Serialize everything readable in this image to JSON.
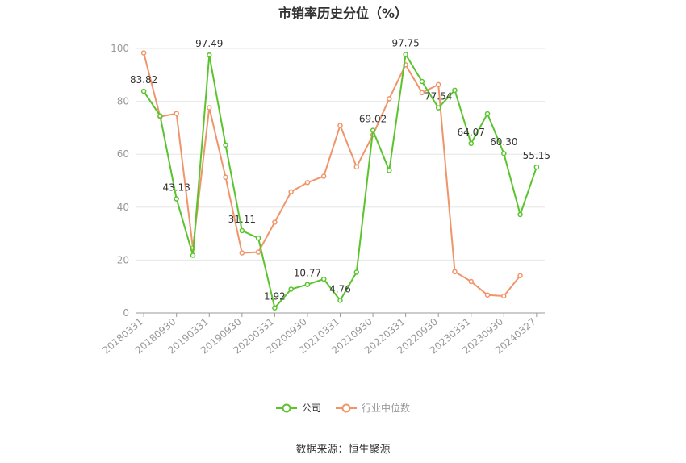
{
  "chart_data": {
    "type": "line",
    "title": "市销率历史分位（%）",
    "xlabel": "",
    "ylabel": "",
    "ylim": [
      0,
      100
    ],
    "yticks": [
      0,
      20,
      40,
      60,
      80,
      100
    ],
    "grid": true,
    "legend_position": "bottom",
    "x": [
      "20180331",
      "20180630",
      "20180930",
      "20181231",
      "20190331",
      "20190630",
      "20190930",
      "20191231",
      "20200331",
      "20200630",
      "20200930",
      "20201231",
      "20210331",
      "20210630",
      "20210930",
      "20211231",
      "20220331",
      "20220630",
      "20220930",
      "20221231",
      "20230331",
      "20230630",
      "20230930",
      "20231231",
      "20240327"
    ],
    "x_tick_labels": [
      "20180331",
      "20180930",
      "20190331",
      "20190930",
      "20200331",
      "20200930",
      "20210331",
      "20210930",
      "20220331",
      "20220930",
      "20230331",
      "20230930",
      "20240327"
    ],
    "series": [
      {
        "name": "公司",
        "color": "#5ac42d",
        "values": [
          83.82,
          74.5,
          43.13,
          21.8,
          97.49,
          63.5,
          31.11,
          28.3,
          1.92,
          9.0,
          10.77,
          12.8,
          4.76,
          15.4,
          69.02,
          53.8,
          97.75,
          87.5,
          77.54,
          84.2,
          64.07,
          75.3,
          60.3,
          37.2,
          55.15
        ]
      },
      {
        "name": "行业中位数",
        "color": "#f0956a",
        "values": [
          98.3,
          74.2,
          75.4,
          24.5,
          77.6,
          51.3,
          22.7,
          23.0,
          34.3,
          45.8,
          49.3,
          51.7,
          70.9,
          55.2,
          67.3,
          81.0,
          93.8,
          83.3,
          86.3,
          15.6,
          11.9,
          6.8,
          6.4,
          14.1,
          null
        ]
      }
    ],
    "data_labels": [
      {
        "series": 0,
        "index": 0,
        "text": "83.82"
      },
      {
        "series": 0,
        "index": 2,
        "text": "43.13"
      },
      {
        "series": 0,
        "index": 4,
        "text": "97.49"
      },
      {
        "series": 0,
        "index": 6,
        "text": "31.11"
      },
      {
        "series": 0,
        "index": 8,
        "text": "1.92"
      },
      {
        "series": 0,
        "index": 10,
        "text": "10.77"
      },
      {
        "series": 0,
        "index": 12,
        "text": "4.76"
      },
      {
        "series": 0,
        "index": 14,
        "text": "69.02"
      },
      {
        "series": 0,
        "index": 16,
        "text": "97.75"
      },
      {
        "series": 0,
        "index": 18,
        "text": "77.54"
      },
      {
        "series": 0,
        "index": 20,
        "text": "64.07"
      },
      {
        "series": 0,
        "index": 22,
        "text": "60.30"
      },
      {
        "series": 0,
        "index": 24,
        "text": "55.15"
      }
    ]
  },
  "legend": {
    "company": "公司",
    "industry": "行业中位数"
  },
  "source": "数据来源：恒生聚源"
}
